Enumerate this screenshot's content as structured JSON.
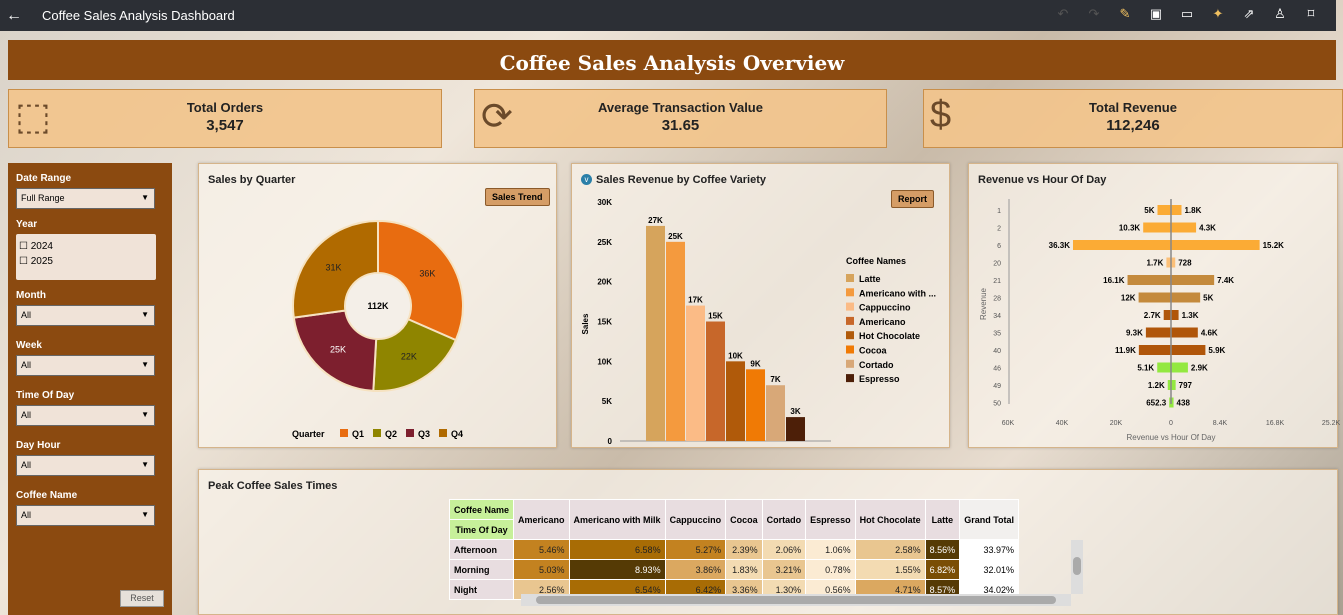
{
  "app": {
    "back_icon": "arrow-left-icon",
    "title": "Coffee Sales Analysis Dashboard",
    "toolbar_icons": [
      "undo-icon",
      "redo-icon",
      "edit-icon",
      "save-icon",
      "comment-icon",
      "magic-icon",
      "share-icon",
      "user-icon",
      "bookmark-icon"
    ]
  },
  "banner": {
    "title": "Coffee Sales Analysis Overview"
  },
  "kpis": [
    {
      "label": "Total Orders",
      "value": "3,547",
      "icon": "box-icon"
    },
    {
      "label": "Average Transaction Value",
      "value": "31.65",
      "icon": "dollar-refresh-icon"
    },
    {
      "label": "Total Revenue",
      "value": "112,246",
      "icon": "money-bag-icon"
    }
  ],
  "filters": {
    "date_range": {
      "label": "Date Range",
      "value": "Full Range"
    },
    "year": {
      "label": "Year",
      "options": [
        "2024",
        "2025"
      ]
    },
    "month": {
      "label": "Month",
      "value": "All"
    },
    "week": {
      "label": "Week",
      "value": "All"
    },
    "time_of_day": {
      "label": "Time Of Day",
      "value": "All"
    },
    "day_hour": {
      "label": "Day Hour",
      "value": "All"
    },
    "coffee_name": {
      "label": "Coffee Name",
      "value": "All"
    },
    "reset": "Reset"
  },
  "colors": {
    "brown": "#8b4a10",
    "kpi": "#f2c48c"
  },
  "chart_data": [
    {
      "type": "pie",
      "title": "Sales by Quarter",
      "button": "Sales Trend",
      "center_label": "112K",
      "legend_title": "Quarter",
      "categories": [
        "Q1",
        "Q2",
        "Q3",
        "Q4"
      ],
      "values": [
        36,
        22,
        25,
        31
      ],
      "labels": [
        "36K",
        "22K",
        "25K",
        "31K"
      ],
      "colors": [
        "#e86c10",
        "#8f8500",
        "#7d1f2e",
        "#b06a00"
      ]
    },
    {
      "type": "bar",
      "title": "Sales Revenue by Coffee Variety",
      "button": "Report",
      "ylabel": "Sales",
      "ylim": [
        0,
        30000
      ],
      "yticks": [
        "0",
        "5K",
        "10K",
        "15K",
        "20K",
        "25K",
        "30K"
      ],
      "legend_title": "Coffee Names",
      "categories": [
        "Latte",
        "Americano with ...",
        "Cappuccino",
        "Americano",
        "Hot Chocolate",
        "Cocoa",
        "Cortado",
        "Espresso"
      ],
      "values": [
        27000,
        25000,
        17000,
        15000,
        10000,
        9000,
        7000,
        3000
      ],
      "labels": [
        "27K",
        "25K",
        "17K",
        "15K",
        "10K",
        "9K",
        "7K",
        "3K"
      ],
      "colors": [
        "#d6a45c",
        "#f49a3e",
        "#fbbb86",
        "#c7672a",
        "#b05a0a",
        "#f07a05",
        "#d8a878",
        "#4d1f08"
      ]
    },
    {
      "type": "bar",
      "title": "Revenue vs Hour Of Day",
      "xlabel": "Revenue vs Hour Of Day",
      "ylabel": "Revenue",
      "xticks": [
        "60K",
        "40K",
        "20K",
        "0",
        "8.4K",
        "16.8K",
        "25.2K"
      ],
      "categories": [
        "1",
        "2",
        "6",
        "20",
        "21",
        "28",
        "34",
        "35",
        "40",
        "46",
        "49",
        "50"
      ],
      "left_values": [
        5000,
        10300,
        36300,
        1700,
        16100,
        12000,
        2700,
        9300,
        11900,
        5100,
        1200,
        652.3
      ],
      "left_labels": [
        "5K",
        "10.3K",
        "36.3K",
        "1.7K",
        "16.1K",
        "12K",
        "2.7K",
        "9.3K",
        "11.9K",
        "5.1K",
        "1.2K",
        "652.3"
      ],
      "right_values": [
        1800,
        4300,
        15200,
        728,
        7400,
        5000,
        1300,
        4600,
        5900,
        2900,
        797,
        438
      ],
      "right_labels": [
        "1.8K",
        "4.3K",
        "15.2K",
        "728",
        "7.4K",
        "5K",
        "1.3K",
        "4.6K",
        "5.9K",
        "2.9K",
        "797",
        "438"
      ],
      "colors": [
        "#fbab35",
        "#fbab35",
        "#fbab35",
        "#fcc078",
        "#c48a3c",
        "#c48a3c",
        "#b0560a",
        "#b0560a",
        "#b0560a",
        "#93e840",
        "#93e840",
        "#93e840"
      ]
    }
  ],
  "pivot": {
    "title": "Peak Coffee Sales Times",
    "col_header": "Coffee Name",
    "row_header": "Time Of Day",
    "columns": [
      "Americano",
      "Americano with Milk",
      "Cappuccino",
      "Cocoa",
      "Cortado",
      "Espresso",
      "Hot Chocolate",
      "Latte",
      "Grand Total"
    ],
    "rows": [
      {
        "name": "Afternoon",
        "values": [
          "5.46%",
          "6.58%",
          "5.27%",
          "2.39%",
          "2.06%",
          "1.06%",
          "2.58%",
          "8.56%",
          "33.97%"
        ]
      },
      {
        "name": "Morning",
        "values": [
          "5.03%",
          "8.93%",
          "3.86%",
          "1.83%",
          "3.21%",
          "0.78%",
          "1.55%",
          "6.82%",
          "32.01%"
        ]
      },
      {
        "name": "Night",
        "values": [
          "2.56%",
          "6.54%",
          "6.42%",
          "3.36%",
          "1.30%",
          "0.56%",
          "4.71%",
          "8.57%",
          "34.02%"
        ]
      }
    ]
  }
}
